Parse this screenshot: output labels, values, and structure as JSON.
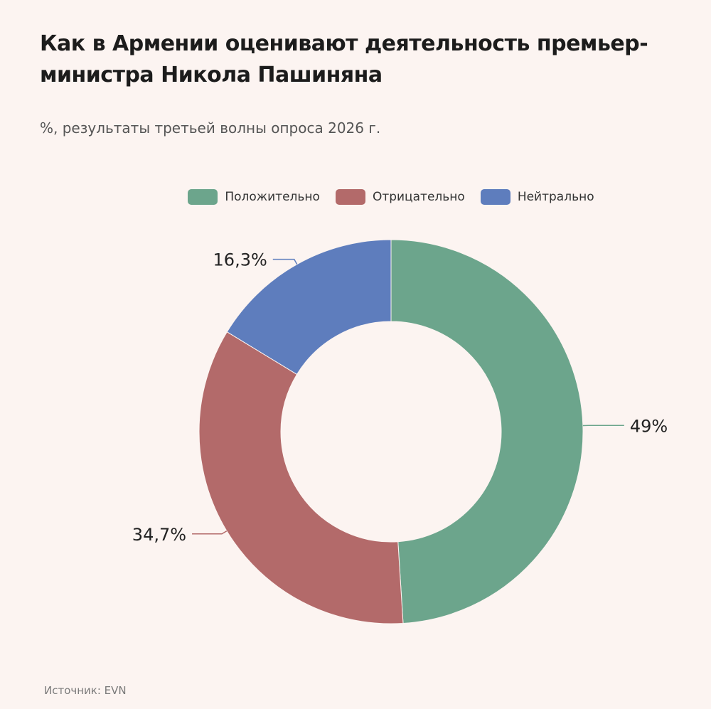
{
  "title": "Как в Армении оценивают деятельность премьер-министра Никола Пашиняна",
  "subtitle": "%, результаты третьей волны опроса 2026 г.",
  "source": "Источник: EVN",
  "chart_data": {
    "type": "pie",
    "donut": true,
    "legend_position": "top-center",
    "categories": [
      "Положительно",
      "Отрицательно",
      "Нейтрально"
    ],
    "values": [
      49,
      34.7,
      16.3
    ],
    "data_labels": [
      "49%",
      "34,7%",
      "16,3%"
    ],
    "colors": [
      "#6ca58c",
      "#b36a6a",
      "#5e7dbd"
    ]
  }
}
